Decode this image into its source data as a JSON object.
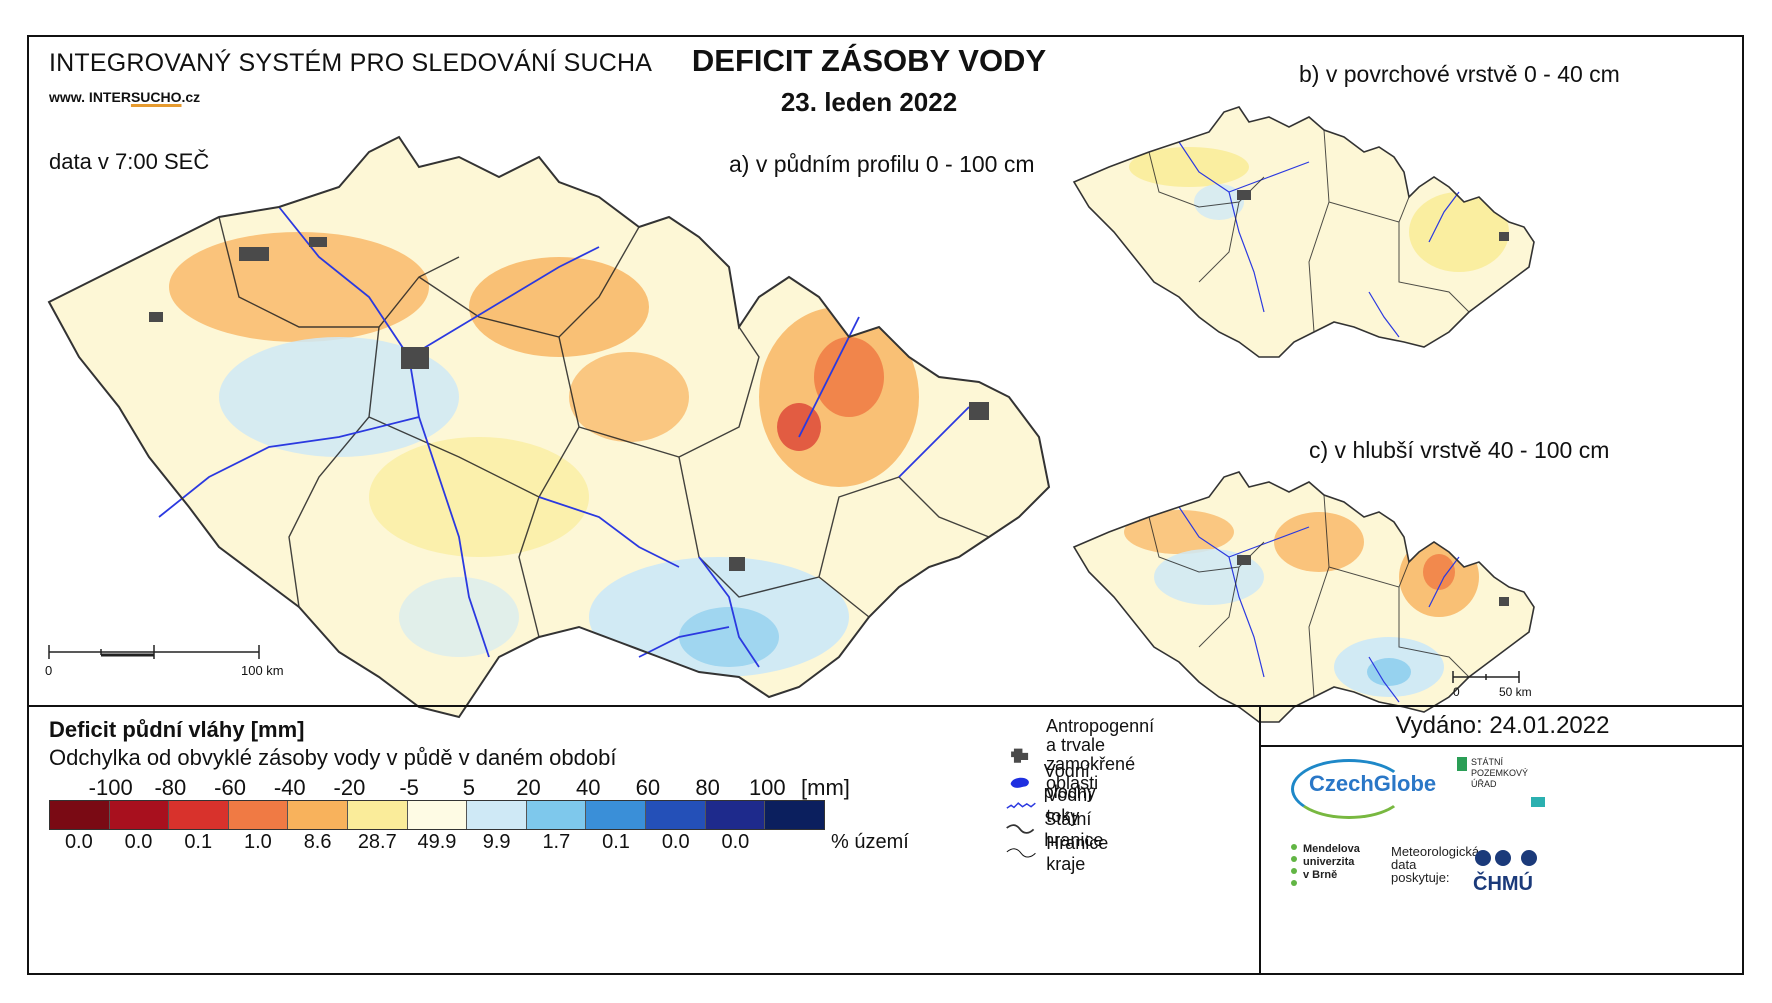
{
  "header": {
    "system": "INTEGROVANÝ SYSTÉM PRO SLEDOVÁNÍ SUCHA",
    "url_prefix": "www. INTER",
    "url_brand": "SUCHO",
    "url_suffix": ".cz",
    "time_note": "data v 7:00 SEČ",
    "title": "DEFICIT ZÁSOBY VODY",
    "date": "23. leden 2022"
  },
  "maps": {
    "main": {
      "label": "a) v půdním profilu 0 - 100 cm",
      "scale_start": "0",
      "scale_end": "100 km"
    },
    "top": {
      "label": "b) v povrchové vrstvě 0 - 40 cm"
    },
    "bottom": {
      "label": "c) v hlubší vrstvě 40 - 100 cm",
      "scale_start": "0",
      "scale_end": "50 km"
    }
  },
  "legend": {
    "title": "Deficit půdní vláhy  [mm]",
    "subtitle": "Odchylka od obvyklé zásoby vody v půdě v daném období",
    "ticks": [
      "-100",
      "-80",
      "-60",
      "-40",
      "-20",
      "-5",
      "5",
      "20",
      "40",
      "60",
      "80",
      "100"
    ],
    "unit": "[mm]",
    "colors": [
      "#7a0a14",
      "#a8101e",
      "#d8322c",
      "#f07a44",
      "#f8b25c",
      "#faec9a",
      "#fefbe4",
      "#cfe9f6",
      "#7ec8ec",
      "#3a8fd8",
      "#2450b8",
      "#1e2a8c",
      "#0b1f5e"
    ],
    "percentages": [
      "0.0",
      "0.0",
      "0.1",
      "1.0",
      "8.6",
      "28.7",
      "49.9",
      "9.9",
      "1.7",
      "0.1",
      "0.0",
      "0.0",
      ""
    ],
    "pct_unit": "% území"
  },
  "symbols": {
    "items": [
      {
        "icon": "urban-area-icon",
        "label": "Antropogenní a trvale\nzamokřené oblasti"
      },
      {
        "icon": "water-body-icon",
        "label": "Vodní plochy"
      },
      {
        "icon": "river-icon",
        "label": "Vodní toky"
      },
      {
        "icon": "state-border-icon",
        "label": "Státní hranice"
      },
      {
        "icon": "region-border-icon",
        "label": "Hranice kraje"
      }
    ]
  },
  "footer": {
    "issued": "Vydáno: 24.01.2022",
    "czechglobe": "CzechGlobe",
    "spu": "STÁTNÍ\nPOZEMKOVÝ\nÚŘAD",
    "mendel": "Mendelova\nuniverzita\nv Brně",
    "meteo": "Meteorologická\ndata\nposkytuje:",
    "chmu": "ČHMÚ"
  }
}
